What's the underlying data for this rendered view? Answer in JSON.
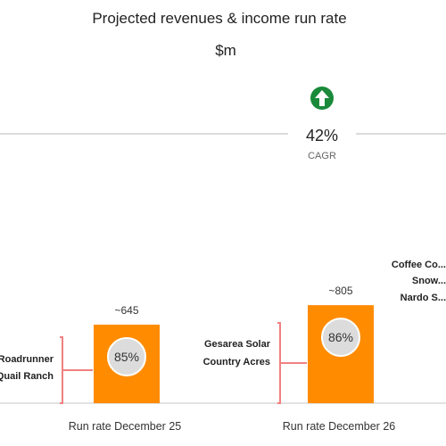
{
  "chart_data": {
    "type": "bar",
    "title": "Projected revenues & income run rate",
    "subtitle": "$m",
    "categories": [
      "Run rate December 25",
      "Run rate December 26"
    ],
    "values": [
      645,
      805
    ],
    "value_labels": [
      "~645",
      "~805"
    ],
    "pct_badges": [
      "85%",
      "86%"
    ],
    "growth": {
      "value": "42%",
      "label": "CAGR"
    },
    "annotations": [
      {
        "text": "Roadrunner\nQuail Ranch",
        "category": "Run rate December 25"
      },
      {
        "text": "Gesarea Solar\nCountry Acres",
        "category": "Run rate December 26"
      },
      {
        "text": "Coffee Co...\nSnow...\nNardo S...",
        "category": "Run rate December 26"
      }
    ],
    "colors": {
      "bar": "#FF8C00",
      "badge": "#DCDCDC",
      "bracket": "#F08080",
      "arrow": "#1A8A3A"
    }
  }
}
